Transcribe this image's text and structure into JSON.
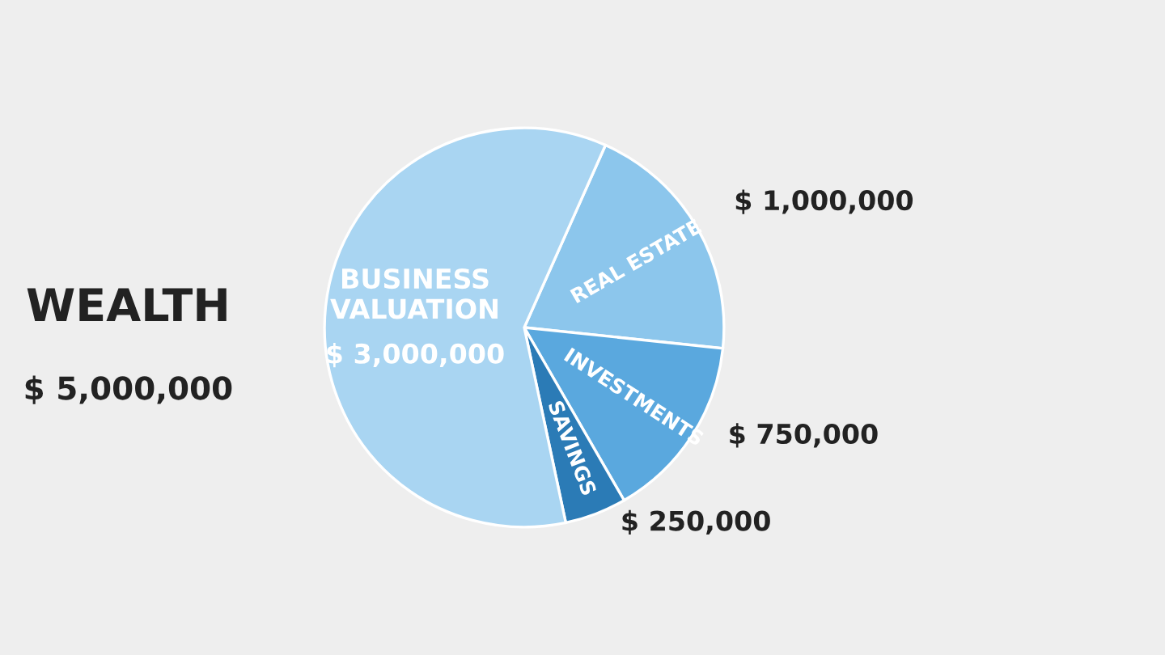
{
  "chart_data": {
    "type": "pie",
    "title": "WEALTH",
    "annotations": [
      "$ 5,000,000"
    ],
    "categories": [
      "REAL ESTATE",
      "INVESTMENTS",
      "SAVINGS",
      "BUSINESS VALUATION"
    ],
    "values": [
      1000000,
      750000,
      250000,
      3000000
    ],
    "value_labels": [
      "$ 1,000,000",
      "$ 750,000",
      "$ 250,000",
      "$ 3,000,000"
    ],
    "colors": [
      "#8cc6ec",
      "#5aa8de",
      "#2b7bb6",
      "#a9d5f2"
    ]
  }
}
